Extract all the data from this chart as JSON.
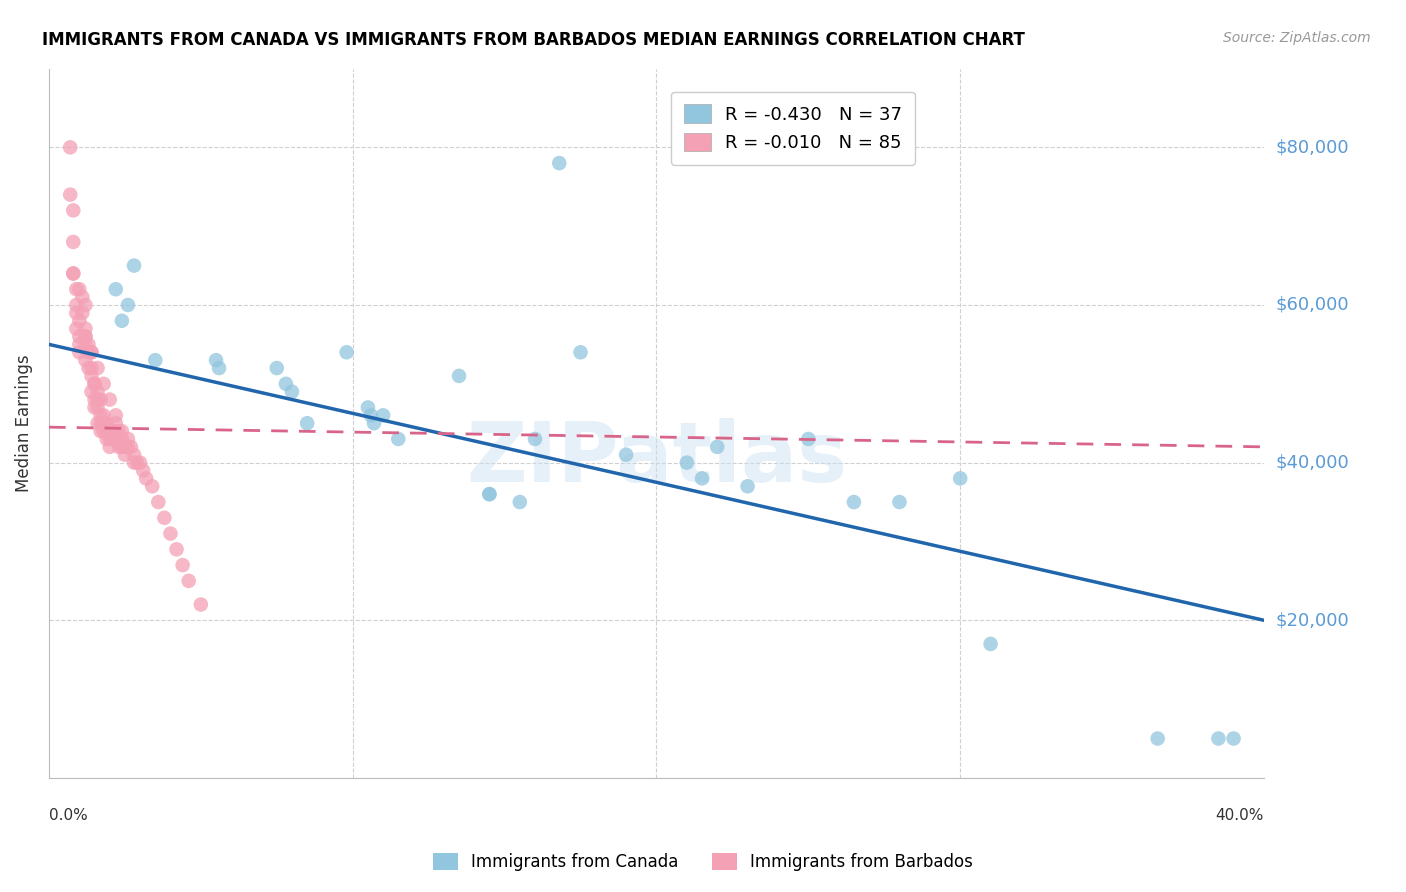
{
  "title": "IMMIGRANTS FROM CANADA VS IMMIGRANTS FROM BARBADOS MEDIAN EARNINGS CORRELATION CHART",
  "source": "Source: ZipAtlas.com",
  "ylabel": "Median Earnings",
  "xlim": [
    0.0,
    0.4
  ],
  "ylim": [
    0,
    90000
  ],
  "legend_blue_r": "R = -0.430",
  "legend_blue_n": "N = 37",
  "legend_pink_r": "R = -0.010",
  "legend_pink_n": "N = 85",
  "legend_label_blue": "Immigrants from Canada",
  "legend_label_pink": "Immigrants from Barbados",
  "color_blue": "#92c5de",
  "color_pink": "#f4a0b5",
  "trendline_blue": "#2166ac",
  "trendline_pink": "#d9648a",
  "watermark": "ZIPatlas",
  "blue_x": [
    0.168,
    0.022,
    0.026,
    0.024,
    0.028,
    0.035,
    0.056,
    0.075,
    0.078,
    0.08,
    0.105,
    0.11,
    0.106,
    0.107,
    0.098,
    0.055,
    0.085,
    0.115,
    0.135,
    0.145,
    0.16,
    0.175,
    0.19,
    0.21,
    0.215,
    0.23,
    0.25,
    0.265,
    0.28,
    0.145,
    0.155,
    0.3,
    0.22,
    0.31,
    0.365,
    0.385,
    0.39
  ],
  "blue_y": [
    78000,
    62000,
    60000,
    58000,
    65000,
    53000,
    52000,
    52000,
    50000,
    49000,
    47000,
    46000,
    46000,
    45000,
    54000,
    53000,
    45000,
    43000,
    51000,
    36000,
    43000,
    54000,
    41000,
    40000,
    38000,
    37000,
    43000,
    35000,
    35000,
    36000,
    35000,
    38000,
    42000,
    17000,
    5000,
    5000,
    5000
  ],
  "pink_x": [
    0.007,
    0.007,
    0.008,
    0.008,
    0.008,
    0.009,
    0.009,
    0.009,
    0.009,
    0.01,
    0.01,
    0.01,
    0.011,
    0.011,
    0.012,
    0.012,
    0.012,
    0.012,
    0.013,
    0.013,
    0.013,
    0.014,
    0.014,
    0.014,
    0.014,
    0.015,
    0.015,
    0.015,
    0.016,
    0.016,
    0.016,
    0.016,
    0.017,
    0.017,
    0.017,
    0.018,
    0.018,
    0.018,
    0.019,
    0.019,
    0.019,
    0.02,
    0.02,
    0.02,
    0.021,
    0.021,
    0.022,
    0.022,
    0.022,
    0.023,
    0.023,
    0.024,
    0.024,
    0.025,
    0.025,
    0.026,
    0.027,
    0.028,
    0.029,
    0.03,
    0.031,
    0.032,
    0.034,
    0.036,
    0.038,
    0.04,
    0.042,
    0.044,
    0.046,
    0.05,
    0.01,
    0.012,
    0.014,
    0.016,
    0.018,
    0.02,
    0.022,
    0.024,
    0.026,
    0.028,
    0.008,
    0.01,
    0.012,
    0.015,
    0.017
  ],
  "pink_y": [
    80000,
    74000,
    72000,
    68000,
    64000,
    62000,
    60000,
    59000,
    57000,
    56000,
    55000,
    54000,
    61000,
    59000,
    57000,
    56000,
    55000,
    53000,
    55000,
    54000,
    52000,
    54000,
    52000,
    51000,
    49000,
    50000,
    48000,
    47000,
    49000,
    48000,
    47000,
    45000,
    46000,
    45000,
    44000,
    46000,
    45000,
    44000,
    45000,
    44000,
    43000,
    44000,
    43000,
    42000,
    44000,
    43000,
    45000,
    44000,
    43000,
    44000,
    42000,
    43000,
    42000,
    42000,
    41000,
    43000,
    42000,
    41000,
    40000,
    40000,
    39000,
    38000,
    37000,
    35000,
    33000,
    31000,
    29000,
    27000,
    25000,
    22000,
    58000,
    56000,
    54000,
    52000,
    50000,
    48000,
    46000,
    44000,
    42000,
    40000,
    64000,
    62000,
    60000,
    50000,
    48000
  ]
}
